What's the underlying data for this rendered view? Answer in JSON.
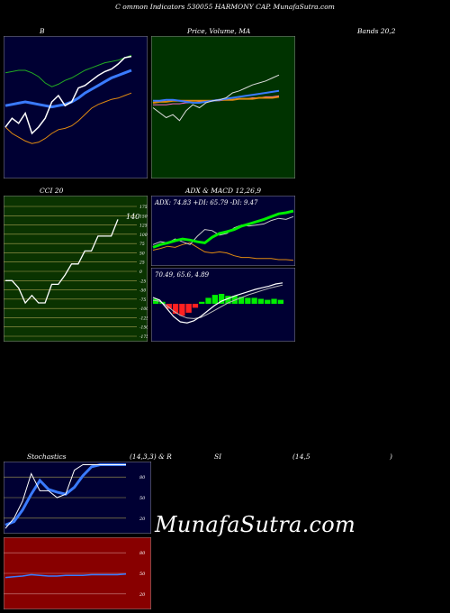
{
  "header": {
    "title": "C                    ommon  Indicators 530055 HARMONY CAP. MunafaSutra.com"
  },
  "panels": {
    "bollinger": {
      "label": "B"
    },
    "price_ma": {
      "label": "Price, Volume, MA",
      "label2": "Volume, MA"
    },
    "bands_text": "Bands 20,2",
    "cci": {
      "label": "CCI 20",
      "value_label": "140"
    },
    "adx_macd": {
      "label": "ADX  & MACD 12,26,9",
      "adx_label": "ADX: 74.83 +DI: 65.79 -DI: 9.47",
      "macd_label": "70.49,  65.6,  4.89"
    },
    "stoch_rsi": {
      "label_a": "Stochastics",
      "label_b": "(14,3,3) & R",
      "label_c": "SI",
      "label_d": "(14,5",
      "label_e": ")"
    }
  },
  "watermark": "MunafaSutra.com",
  "colors": {
    "navy_bg": "#000033",
    "green_bg": "#003300",
    "cci_bg": "#0a3300",
    "rsi_bg": "#880000",
    "blue": "#3a7bff",
    "orange": "#e08a10",
    "green": "#22cc22",
    "bright_green": "#00ee00",
    "red": "#ff2020"
  },
  "chart_data": [
    {
      "type": "line",
      "title": "B",
      "series": [
        {
          "values": [
            0.35,
            0.42,
            0.38,
            0.46,
            0.3,
            0.35,
            0.42,
            0.55,
            0.6,
            0.52,
            0.55,
            0.66,
            0.68,
            0.72,
            0.76,
            0.79,
            0.81,
            0.85,
            0.9,
            0.91
          ]
        },
        {
          "values": [
            0.52,
            0.53,
            0.54,
            0.55,
            0.54,
            0.53,
            0.52,
            0.51,
            0.52,
            0.53,
            0.55,
            0.58,
            0.62,
            0.65,
            0.68,
            0.71,
            0.74,
            0.76,
            0.78,
            0.8
          ]
        },
        {
          "values": [
            0.78,
            0.79,
            0.8,
            0.8,
            0.78,
            0.75,
            0.7,
            0.67,
            0.69,
            0.72,
            0.74,
            0.77,
            0.8,
            0.82,
            0.84,
            0.86,
            0.87,
            0.88,
            0.9,
            0.92
          ]
        },
        {
          "values": [
            0.35,
            0.3,
            0.27,
            0.24,
            0.22,
            0.23,
            0.26,
            0.3,
            0.33,
            0.34,
            0.36,
            0.4,
            0.45,
            0.5,
            0.53,
            0.55,
            0.57,
            0.58,
            0.6,
            0.62
          ]
        }
      ]
    },
    {
      "type": "line",
      "title": "Price, Volume, MA",
      "series": [
        {
          "values": [
            0.55,
            0.5,
            0.45,
            0.48,
            0.42,
            0.52,
            0.58,
            0.55,
            0.6,
            0.62,
            0.63,
            0.65,
            0.7,
            0.72,
            0.75,
            0.78,
            0.8,
            0.82,
            0.85,
            0.88
          ]
        },
        {
          "values": [
            0.62,
            0.62,
            0.63,
            0.63,
            0.62,
            0.61,
            0.6,
            0.6,
            0.61,
            0.62,
            0.63,
            0.64,
            0.65,
            0.66,
            0.67,
            0.68,
            0.69,
            0.7,
            0.71,
            0.72
          ]
        },
        {
          "values": [
            0.58,
            0.58,
            0.58,
            0.59,
            0.59,
            0.6,
            0.6,
            0.61,
            0.61,
            0.62,
            0.62,
            0.63,
            0.63,
            0.64,
            0.64,
            0.65,
            0.65,
            0.66,
            0.66,
            0.67
          ]
        },
        {
          "values": [
            0.6,
            0.61,
            0.61,
            0.62,
            0.62,
            0.62,
            0.62,
            0.62,
            0.62,
            0.62,
            0.63,
            0.63,
            0.63,
            0.64,
            0.64,
            0.64,
            0.65,
            0.65,
            0.65,
            0.66
          ]
        }
      ]
    },
    {
      "type": "line",
      "title": "CCI 20",
      "ylim": [
        -175,
        175
      ],
      "yticks": [
        175,
        150,
        125,
        100,
        75,
        50,
        25,
        0,
        -25,
        -50,
        -75,
        -100,
        -125,
        -150,
        -175
      ],
      "series": [
        {
          "values": [
            -25,
            -25,
            -45,
            -85,
            -65,
            -85,
            -85,
            -35,
            -35,
            -10,
            20,
            20,
            55,
            55,
            95,
            95,
            95,
            140
          ]
        }
      ]
    },
    {
      "type": "line",
      "title": "ADX",
      "series": [
        {
          "name": "ADX",
          "values": [
            0.3,
            0.35,
            0.38,
            0.42,
            0.45,
            0.43,
            0.4,
            0.38,
            0.48,
            0.55,
            0.58,
            0.62,
            0.68,
            0.72,
            0.76,
            0.8,
            0.85,
            0.9,
            0.92,
            0.95
          ]
        },
        {
          "name": "+DI",
          "values": [
            0.35,
            0.4,
            0.38,
            0.45,
            0.4,
            0.35,
            0.5,
            0.62,
            0.6,
            0.52,
            0.55,
            0.65,
            0.7,
            0.68,
            0.7,
            0.72,
            0.78,
            0.82,
            0.8,
            0.85
          ]
        },
        {
          "name": "-DI",
          "values": [
            0.25,
            0.28,
            0.32,
            0.3,
            0.35,
            0.38,
            0.3,
            0.22,
            0.2,
            0.22,
            0.2,
            0.15,
            0.12,
            0.12,
            0.1,
            0.1,
            0.1,
            0.08,
            0.08,
            0.07
          ]
        }
      ]
    },
    {
      "type": "bar",
      "title": "MACD",
      "series": [
        {
          "name": "MACD",
          "values": [
            0.65,
            0.6,
            0.45,
            0.3,
            0.2,
            0.18,
            0.22,
            0.3,
            0.4,
            0.5,
            0.58,
            0.63,
            0.68,
            0.72,
            0.76,
            0.8,
            0.83,
            0.86,
            0.9,
            0.92
          ]
        },
        {
          "name": "Signal",
          "values": [
            0.6,
            0.58,
            0.5,
            0.4,
            0.32,
            0.27,
            0.26,
            0.28,
            0.34,
            0.41,
            0.48,
            0.55,
            0.6,
            0.65,
            0.7,
            0.74,
            0.78,
            0.82,
            0.85,
            0.88
          ]
        },
        {
          "name": "Histogram",
          "values": [
            0.05,
            0.02,
            -0.05,
            -0.1,
            -0.12,
            -0.09,
            -0.04,
            0.02,
            0.06,
            0.09,
            0.1,
            0.08,
            0.08,
            0.07,
            0.06,
            0.06,
            0.05,
            0.04,
            0.05,
            0.04
          ]
        }
      ]
    },
    {
      "type": "line",
      "title": "Stochastics",
      "ylim": [
        0,
        100
      ],
      "yticks": [
        80,
        50,
        20
      ],
      "series": [
        {
          "values": [
            5,
            20,
            45,
            85,
            60,
            60,
            50,
            55,
            90,
            98,
            98,
            98,
            98,
            98,
            98
          ]
        },
        {
          "values": [
            10,
            15,
            32,
            55,
            75,
            62,
            58,
            55,
            65,
            82,
            95,
            98,
            98,
            98,
            98
          ]
        }
      ]
    },
    {
      "type": "line",
      "title": "RSI",
      "ylim": [
        0,
        100
      ],
      "yticks": [
        80,
        50,
        20
      ],
      "series": [
        {
          "values": [
            44,
            45,
            46,
            48,
            47,
            46,
            46,
            47,
            47,
            47,
            48,
            48,
            48,
            48,
            49
          ]
        }
      ]
    }
  ]
}
